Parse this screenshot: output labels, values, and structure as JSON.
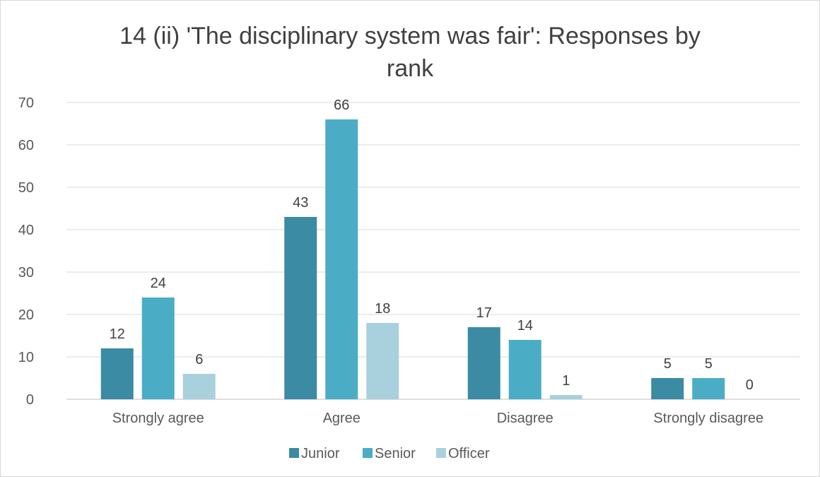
{
  "chart_data": {
    "type": "bar",
    "title_lines": [
      "14 (ii) 'The disciplinary system was fair': Responses by",
      "rank"
    ],
    "categories": [
      "Strongly agree",
      "Agree",
      "Disagree",
      "Strongly disagree"
    ],
    "series": [
      {
        "name": "Junior",
        "color": "#3a8ba3",
        "values": [
          12,
          43,
          17,
          5
        ]
      },
      {
        "name": "Senior",
        "color": "#4bacc6",
        "values": [
          24,
          66,
          14,
          5
        ]
      },
      {
        "name": "Officer",
        "color": "#a9d0dd",
        "values": [
          6,
          18,
          1,
          0
        ]
      }
    ],
    "ylim": [
      0,
      70
    ],
    "yticks": [
      0,
      10,
      20,
      30,
      40,
      50,
      60,
      70
    ],
    "grid": true,
    "legend_position": "bottom",
    "data_labels": true
  }
}
